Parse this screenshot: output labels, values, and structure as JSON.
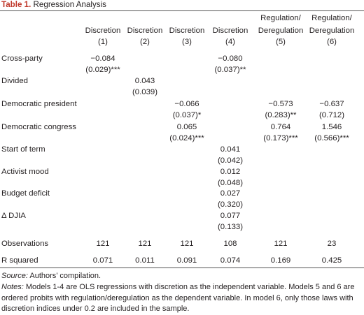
{
  "table": {
    "label": "Table 1.",
    "title": "Regression Analysis",
    "columns": [
      {
        "name": "Discretion",
        "num": "(1)"
      },
      {
        "name": "Discretion",
        "num": "(2)"
      },
      {
        "name": "Discretion",
        "num": "(3)"
      },
      {
        "name": "Discretion",
        "num": "(4)"
      },
      {
        "name_line1": "Regulation/",
        "name": "Deregulation",
        "num": "(5)"
      },
      {
        "name_line1": "Regulation/",
        "name": "Deregulation",
        "num": "(6)"
      }
    ],
    "rows": [
      {
        "label": "Cross-party",
        "cells": [
          [
            "−0.084",
            "(0.029)***"
          ],
          [
            "",
            ""
          ],
          [
            "",
            ""
          ],
          [
            "−0.080",
            "(0.037)**"
          ],
          [
            "",
            ""
          ],
          [
            "",
            ""
          ]
        ]
      },
      {
        "label": "Divided",
        "cells": [
          [
            "",
            ""
          ],
          [
            "0.043",
            "(0.039)"
          ],
          [
            "",
            ""
          ],
          [
            "",
            ""
          ],
          [
            "",
            ""
          ],
          [
            "",
            ""
          ]
        ]
      },
      {
        "label": "Democratic president",
        "cells": [
          [
            "",
            ""
          ],
          [
            "",
            ""
          ],
          [
            "−0.066",
            "(0.037)*"
          ],
          [
            "",
            ""
          ],
          [
            "−0.573",
            "(0.283)**"
          ],
          [
            "−0.637",
            "(0.712)"
          ]
        ]
      },
      {
        "label": "Democratic congress",
        "cells": [
          [
            "",
            ""
          ],
          [
            "",
            ""
          ],
          [
            "0.065",
            "(0.024)***"
          ],
          [
            "",
            ""
          ],
          [
            "0.764",
            "(0.173)***"
          ],
          [
            "1.546",
            "(0.566)***"
          ]
        ]
      },
      {
        "label": "Start of term",
        "cells": [
          [
            "",
            ""
          ],
          [
            "",
            ""
          ],
          [
            "",
            ""
          ],
          [
            "0.041",
            "(0.042)"
          ],
          [
            "",
            ""
          ],
          [
            "",
            ""
          ]
        ]
      },
      {
        "label": "Activist mood",
        "cells": [
          [
            "",
            ""
          ],
          [
            "",
            ""
          ],
          [
            "",
            ""
          ],
          [
            "0.012",
            "(0.048)"
          ],
          [
            "",
            ""
          ],
          [
            "",
            ""
          ]
        ]
      },
      {
        "label": "Budget deficit",
        "cells": [
          [
            "",
            ""
          ],
          [
            "",
            ""
          ],
          [
            "",
            ""
          ],
          [
            "0.027",
            "(0.320)"
          ],
          [
            "",
            ""
          ],
          [
            "",
            ""
          ]
        ]
      },
      {
        "label": "Δ DJIA",
        "cells": [
          [
            "",
            ""
          ],
          [
            "",
            ""
          ],
          [
            "",
            ""
          ],
          [
            "0.077",
            "(0.133)"
          ],
          [
            "",
            ""
          ],
          [
            "",
            ""
          ]
        ]
      }
    ],
    "observations": {
      "label": "Observations",
      "values": [
        "121",
        "121",
        "121",
        "108",
        "121",
        "23"
      ]
    },
    "rsquared": {
      "label": "R squared",
      "values": [
        "0.071",
        "0.011",
        "0.091",
        "0.074",
        "0.169",
        "0.425"
      ]
    }
  },
  "footer": {
    "source_label": "Source:",
    "source_text": " Authors’ compilation.",
    "notes_label": "Notes:",
    "notes_text": " Models 1-4 are OLS regressions with discretion as the independent variable. Models 5 and 6 are ordered probits with regulation/deregulation as the dependent variable. In model 6, only those laws with discretion indices under 0.2 are included in the sample."
  }
}
